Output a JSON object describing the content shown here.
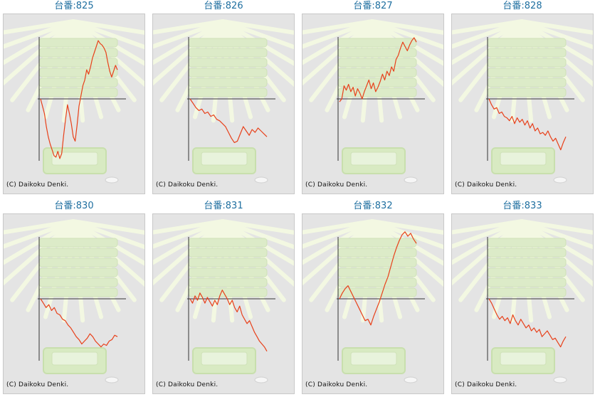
{
  "colors": {
    "title": "#1f6fa0",
    "line": "#e8401a",
    "axis": "#333333",
    "panel_bg": "#e4e4e4",
    "watermark": "#f3f8e2"
  },
  "chart_data": [
    {
      "type": "line",
      "title": "台番:825",
      "ylim": [
        -85,
        85
      ],
      "values": [
        0,
        -10,
        -20,
        -38,
        -52,
        -62,
        -70,
        -78,
        -80,
        -72,
        -82,
        -75,
        -50,
        -28,
        -8,
        -20,
        -34,
        -52,
        -58,
        -36,
        -10,
        4,
        18,
        26,
        40,
        34,
        44,
        56,
        64,
        72,
        80,
        76,
        74,
        70,
        64,
        50,
        38,
        30,
        38,
        46,
        40
      ]
    },
    {
      "type": "line",
      "title": "台番:826",
      "ylim": [
        -85,
        85
      ],
      "values": [
        0,
        -6,
        -12,
        -16,
        -14,
        -20,
        -18,
        -24,
        -22,
        -28,
        -30,
        -34,
        -38,
        -46,
        -54,
        -60,
        -58,
        -48,
        -38,
        -44,
        -50,
        -42,
        -46,
        -40,
        -44,
        -48,
        -52
      ]
    },
    {
      "type": "line",
      "title": "台番:827",
      "ylim": [
        -85,
        85
      ],
      "values": [
        -4,
        0,
        18,
        12,
        20,
        10,
        16,
        4,
        14,
        8,
        0,
        10,
        18,
        26,
        14,
        22,
        10,
        16,
        24,
        34,
        26,
        38,
        32,
        44,
        38,
        54,
        60,
        70,
        78,
        72,
        66,
        74,
        80,
        84,
        78
      ]
    },
    {
      "type": "line",
      "title": "台番:828",
      "ylim": [
        -85,
        85
      ],
      "values": [
        0,
        -8,
        -14,
        -12,
        -20,
        -18,
        -24,
        -26,
        -30,
        -24,
        -34,
        -26,
        -32,
        -28,
        -36,
        -30,
        -40,
        -34,
        -44,
        -40,
        -48,
        -46,
        -50,
        -44,
        -52,
        -58,
        -54,
        -62,
        -70,
        -60,
        -52
      ]
    },
    {
      "type": "line",
      "title": "台番:830",
      "ylim": [
        -85,
        85
      ],
      "values": [
        0,
        -6,
        -12,
        -8,
        -16,
        -12,
        -20,
        -22,
        -28,
        -30,
        -36,
        -40,
        -46,
        -52,
        -56,
        -62,
        -58,
        -54,
        -48,
        -52,
        -58,
        -62,
        -66,
        -62,
        -64,
        -58,
        -56,
        -50,
        -52
      ]
    },
    {
      "type": "line",
      "title": "台番:831",
      "ylim": [
        -85,
        85
      ],
      "values": [
        0,
        -6,
        4,
        -2,
        8,
        2,
        -6,
        2,
        -4,
        -10,
        -2,
        -8,
        4,
        12,
        6,
        0,
        -8,
        -2,
        -12,
        -18,
        -10,
        -22,
        -28,
        -34,
        -30,
        -38,
        -46,
        -52,
        -58,
        -62,
        -66,
        -72
      ]
    },
    {
      "type": "line",
      "title": "台番:832",
      "ylim": [
        -85,
        85
      ],
      "values": [
        0,
        8,
        14,
        18,
        10,
        2,
        -6,
        -14,
        -22,
        -30,
        -28,
        -36,
        -24,
        -14,
        -4,
        8,
        20,
        30,
        44,
        58,
        70,
        80,
        88,
        92,
        86,
        90,
        82,
        76
      ]
    },
    {
      "type": "line",
      "title": "台番:833",
      "ylim": [
        -85,
        85
      ],
      "values": [
        0,
        -6,
        -14,
        -22,
        -28,
        -24,
        -30,
        -26,
        -34,
        -22,
        -30,
        -36,
        -28,
        -34,
        -40,
        -36,
        -44,
        -40,
        -46,
        -42,
        -52,
        -48,
        -44,
        -50,
        -56,
        -54,
        -60,
        -66,
        -58,
        -52
      ]
    }
  ],
  "cells": [
    {
      "title": "台番:825",
      "copyright": "(C) Daikoku Denki."
    },
    {
      "title": "台番:826",
      "copyright": "(C) Daikoku Denki."
    },
    {
      "title": "台番:827",
      "copyright": "(C) Daikoku Denki."
    },
    {
      "title": "台番:828",
      "copyright": "(C) Daikoku Denki."
    },
    {
      "title": "台番:830",
      "copyright": "(C) Daikoku Denki."
    },
    {
      "title": "台番:831",
      "copyright": "(C) Daikoku Denki."
    },
    {
      "title": "台番:832",
      "copyright": "(C) Daikoku Denki."
    },
    {
      "title": "台番:833",
      "copyright": "(C) Daikoku Denki."
    }
  ]
}
